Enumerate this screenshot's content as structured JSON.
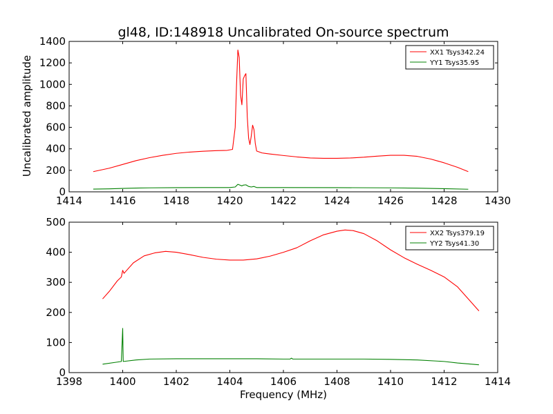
{
  "title": "gl48, ID:148918 Uncalibrated On-source spectrum",
  "shared_ylabel": "Uncalibrated amplitude",
  "xlabel": "Frequency (MHz)",
  "colors": {
    "red": "#ff0000",
    "green": "#008000"
  },
  "chart_data": [
    {
      "type": "line",
      "panel": "top",
      "xlim": [
        1414,
        1430
      ],
      "ylim": [
        0,
        1400
      ],
      "xticks": [
        1414,
        1416,
        1418,
        1420,
        1422,
        1424,
        1426,
        1428,
        1430
      ],
      "yticks": [
        0,
        200,
        400,
        600,
        800,
        1000,
        1200,
        1400
      ],
      "legend_position": "top-right",
      "series": [
        {
          "name": "XX1 Tsys342.24",
          "color": "#ff0000",
          "points": [
            [
              1414.9,
              188
            ],
            [
              1415.5,
              220
            ],
            [
              1416.0,
              255
            ],
            [
              1416.5,
              290
            ],
            [
              1417.0,
              318
            ],
            [
              1417.5,
              340
            ],
            [
              1418.0,
              358
            ],
            [
              1418.5,
              370
            ],
            [
              1419.0,
              378
            ],
            [
              1419.5,
              383
            ],
            [
              1419.9,
              386
            ],
            [
              1420.1,
              395
            ],
            [
              1420.2,
              600
            ],
            [
              1420.25,
              1000
            ],
            [
              1420.3,
              1320
            ],
            [
              1420.35,
              1250
            ],
            [
              1420.4,
              900
            ],
            [
              1420.45,
              810
            ],
            [
              1420.5,
              1050
            ],
            [
              1420.55,
              1080
            ],
            [
              1420.6,
              1100
            ],
            [
              1420.65,
              700
            ],
            [
              1420.7,
              500
            ],
            [
              1420.75,
              440
            ],
            [
              1420.8,
              520
            ],
            [
              1420.85,
              620
            ],
            [
              1420.9,
              580
            ],
            [
              1420.95,
              450
            ],
            [
              1421.0,
              380
            ],
            [
              1421.2,
              362
            ],
            [
              1421.5,
              352
            ],
            [
              1422.0,
              338
            ],
            [
              1422.5,
              325
            ],
            [
              1423.0,
              315
            ],
            [
              1423.5,
              312
            ],
            [
              1424.0,
              312
            ],
            [
              1424.5,
              315
            ],
            [
              1425.0,
              322
            ],
            [
              1425.5,
              332
            ],
            [
              1426.0,
              340
            ],
            [
              1426.5,
              340
            ],
            [
              1427.0,
              330
            ],
            [
              1427.5,
              305
            ],
            [
              1428.0,
              270
            ],
            [
              1428.5,
              228
            ],
            [
              1428.9,
              188
            ]
          ]
        },
        {
          "name": "YY1 Tsys35.95",
          "color": "#008000",
          "points": [
            [
              1414.9,
              25
            ],
            [
              1415.5,
              28
            ],
            [
              1416.0,
              32
            ],
            [
              1416.5,
              35
            ],
            [
              1417.0,
              37
            ],
            [
              1418.0,
              39
            ],
            [
              1419.0,
              40
            ],
            [
              1420.0,
              40
            ],
            [
              1420.2,
              45
            ],
            [
              1420.3,
              70
            ],
            [
              1420.4,
              60
            ],
            [
              1420.45,
              55
            ],
            [
              1420.5,
              62
            ],
            [
              1420.6,
              65
            ],
            [
              1420.7,
              50
            ],
            [
              1420.8,
              45
            ],
            [
              1420.9,
              50
            ],
            [
              1421.0,
              40
            ],
            [
              1422.0,
              40
            ],
            [
              1424.0,
              39
            ],
            [
              1426.0,
              37
            ],
            [
              1427.0,
              34
            ],
            [
              1428.0,
              29
            ],
            [
              1428.9,
              24
            ]
          ]
        }
      ]
    },
    {
      "type": "line",
      "panel": "bottom",
      "xlim": [
        1398,
        1414
      ],
      "ylim": [
        0,
        500
      ],
      "xticks": [
        1398,
        1400,
        1402,
        1404,
        1406,
        1408,
        1410,
        1412,
        1414
      ],
      "yticks": [
        0,
        100,
        200,
        300,
        400,
        500
      ],
      "legend_position": "top-right",
      "series": [
        {
          "name": "XX2 Tsys379.19",
          "color": "#ff0000",
          "points": [
            [
              1399.25,
              245
            ],
            [
              1399.5,
              270
            ],
            [
              1399.8,
              305
            ],
            [
              1399.95,
              318
            ],
            [
              1400.0,
              340
            ],
            [
              1400.05,
              330
            ],
            [
              1400.1,
              335
            ],
            [
              1400.4,
              365
            ],
            [
              1400.8,
              388
            ],
            [
              1401.2,
              398
            ],
            [
              1401.6,
              403
            ],
            [
              1402.0,
              400
            ],
            [
              1402.5,
              392
            ],
            [
              1403.0,
              383
            ],
            [
              1403.5,
              377
            ],
            [
              1404.0,
              374
            ],
            [
              1404.5,
              374
            ],
            [
              1405.0,
              378
            ],
            [
              1405.5,
              387
            ],
            [
              1406.0,
              400
            ],
            [
              1406.5,
              415
            ],
            [
              1407.0,
              438
            ],
            [
              1407.5,
              458
            ],
            [
              1408.0,
              470
            ],
            [
              1408.3,
              474
            ],
            [
              1408.6,
              472
            ],
            [
              1409.0,
              462
            ],
            [
              1409.5,
              438
            ],
            [
              1410.0,
              408
            ],
            [
              1410.5,
              382
            ],
            [
              1411.0,
              360
            ],
            [
              1411.5,
              340
            ],
            [
              1412.0,
              318
            ],
            [
              1412.5,
              285
            ],
            [
              1413.0,
              235
            ],
            [
              1413.3,
              205
            ]
          ]
        },
        {
          "name": "YY2 Tsys41.30",
          "color": "#008000",
          "points": [
            [
              1399.25,
              28
            ],
            [
              1399.8,
              35
            ],
            [
              1399.95,
              37
            ],
            [
              1400.0,
              147
            ],
            [
              1400.02,
              37
            ],
            [
              1400.5,
              42
            ],
            [
              1401.0,
              45
            ],
            [
              1402.0,
              46
            ],
            [
              1403.0,
              46
            ],
            [
              1404.0,
              46
            ],
            [
              1405.0,
              46
            ],
            [
              1406.0,
              45
            ],
            [
              1406.25,
              45
            ],
            [
              1406.3,
              48
            ],
            [
              1406.35,
              45
            ],
            [
              1407.0,
              45
            ],
            [
              1408.0,
              45
            ],
            [
              1409.0,
              45
            ],
            [
              1410.0,
              44
            ],
            [
              1411.0,
              42
            ],
            [
              1412.0,
              37
            ],
            [
              1412.5,
              32
            ],
            [
              1413.3,
              26
            ]
          ]
        }
      ]
    }
  ]
}
